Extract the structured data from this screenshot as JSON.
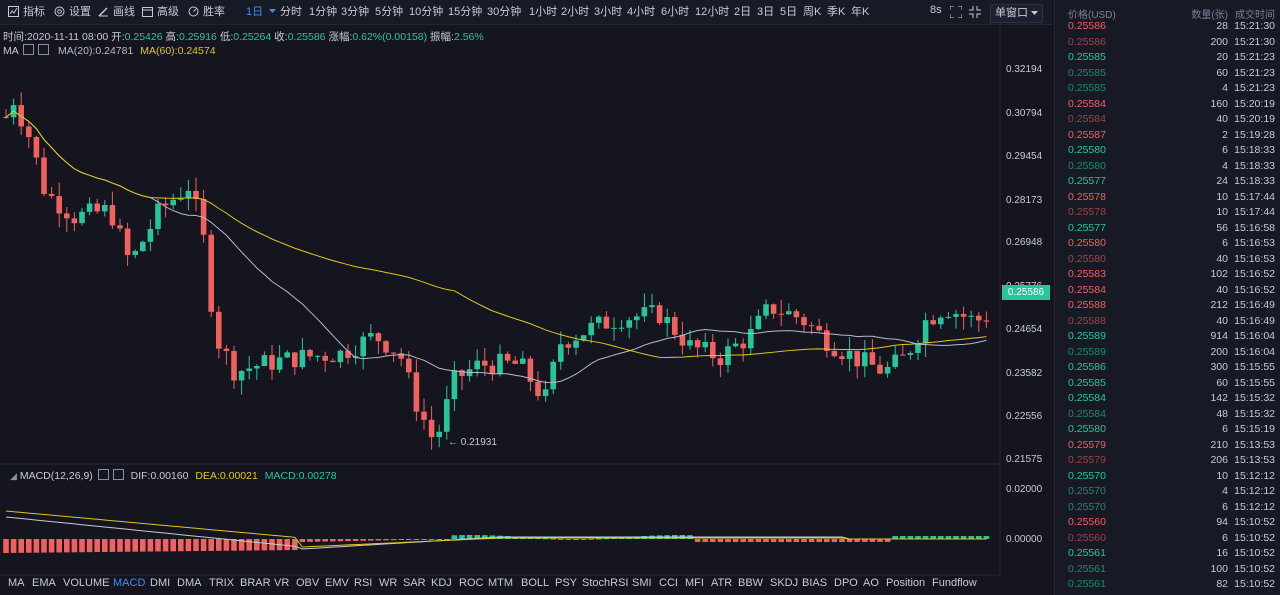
{
  "toolbar": {
    "tools": [
      {
        "label": "指标",
        "icon": "indicator-icon"
      },
      {
        "label": "设置",
        "icon": "gear-icon"
      },
      {
        "label": "画线",
        "icon": "pencil-icon"
      },
      {
        "label": "高级",
        "icon": "calendar-icon"
      },
      {
        "label": "胜率",
        "icon": "gauge-icon"
      }
    ],
    "active_timeframe": "1日",
    "timeframes": [
      "分时",
      "1分钟",
      "3分钟",
      "5分钟",
      "10分钟",
      "15分钟",
      "30分钟",
      "1小时",
      "2小时",
      "3小时",
      "4小时",
      "6小时",
      "12小时",
      "2日",
      "3日",
      "5日",
      "周K",
      "季K",
      "年K"
    ],
    "refresh": "8s",
    "window_mode": "单窗口"
  },
  "info": {
    "time_label": "时间:",
    "time": "2020-11-11 08:00",
    "open_label": "开:",
    "open": "0.25426",
    "high_label": "高:",
    "high": "0.25916",
    "low_label": "低:",
    "low": "0.25264",
    "close_label": "收:",
    "close": "0.25586",
    "change_label": "涨幅:",
    "change": "0.62%(0.00158)",
    "amplitude_label": "振幅:",
    "amplitude": "2.56%"
  },
  "ma": {
    "ma_label": "MA",
    "ma20": "MA(20):0.24781",
    "ma60": "MA(60):0.24574"
  },
  "macd": {
    "name": "MACD(12,26,9)",
    "dif": "DIF:0.00160",
    "dea": "DEA:0.00021",
    "macd": "MACD:0.00278"
  },
  "price_axis": {
    "ticks": [
      "0.32194",
      "0.30794",
      "0.29454",
      "0.28173",
      "0.26948",
      "0.25776",
      "0.24654",
      "0.23582",
      "0.22556",
      "0.21575"
    ],
    "current": "0.25586",
    "min_marker": "0.21931"
  },
  "macd_axis": {
    "ticks": [
      "0.02000",
      "0.00000"
    ]
  },
  "indicators": {
    "active": "MACD",
    "items": [
      "MA",
      "EMA",
      "VOLUME",
      "MACD",
      "DMI",
      "DMA",
      "TRIX",
      "BRAR",
      "VR",
      "OBV",
      "EMV",
      "RSI",
      "WR",
      "SAR",
      "KDJ",
      "ROC",
      "MTM",
      "BOLL",
      "PSY",
      "StochRSI",
      "SMI",
      "CCI",
      "MFI",
      "ATR",
      "BBW",
      "SKDJ",
      "BIAS",
      "DPO",
      "AO",
      "Position",
      "Fundflow"
    ]
  },
  "colors": {
    "up": "#26c69a",
    "down": "#f0615f",
    "ma20": "#b7bad0",
    "ma60": "#e3c61f",
    "accent": "#3e8cf4",
    "down_dim": "#9c4447",
    "up_dim": "#1c8a6c"
  },
  "trades": {
    "headers": {
      "price": "价格(USD)",
      "qty": "数量(张)",
      "time": "成交时间"
    },
    "rows": [
      {
        "price": "0.25586",
        "qty": "28",
        "time": "15:21:30",
        "side": "down"
      },
      {
        "price": "0.25586",
        "qty": "200",
        "time": "15:21:30",
        "side": "down-dim"
      },
      {
        "price": "0.25585",
        "qty": "20",
        "time": "15:21:23",
        "side": "up"
      },
      {
        "price": "0.25585",
        "qty": "60",
        "time": "15:21:23",
        "side": "up-dim"
      },
      {
        "price": "0.25585",
        "qty": "4",
        "time": "15:21:23",
        "side": "up-dim"
      },
      {
        "price": "0.25584",
        "qty": "160",
        "time": "15:20:19",
        "side": "down"
      },
      {
        "price": "0.25584",
        "qty": "40",
        "time": "15:20:19",
        "side": "down-dim"
      },
      {
        "price": "0.25587",
        "qty": "2",
        "time": "15:19:28",
        "side": "down"
      },
      {
        "price": "0.25580",
        "qty": "6",
        "time": "15:18:33",
        "side": "up"
      },
      {
        "price": "0.25580",
        "qty": "4",
        "time": "15:18:33",
        "side": "up-dim"
      },
      {
        "price": "0.25577",
        "qty": "24",
        "time": "15:18:33",
        "side": "up"
      },
      {
        "price": "0.25578",
        "qty": "10",
        "time": "15:17:44",
        "side": "down"
      },
      {
        "price": "0.25578",
        "qty": "10",
        "time": "15:17:44",
        "side": "down-dim"
      },
      {
        "price": "0.25577",
        "qty": "56",
        "time": "15:16:58",
        "side": "up"
      },
      {
        "price": "0.25580",
        "qty": "6",
        "time": "15:16:53",
        "side": "down"
      },
      {
        "price": "0.25580",
        "qty": "40",
        "time": "15:16:53",
        "side": "down-dim"
      },
      {
        "price": "0.25583",
        "qty": "102",
        "time": "15:16:52",
        "side": "down"
      },
      {
        "price": "0.25584",
        "qty": "40",
        "time": "15:16:52",
        "side": "down"
      },
      {
        "price": "0.25588",
        "qty": "212",
        "time": "15:16:49",
        "side": "down"
      },
      {
        "price": "0.25588",
        "qty": "40",
        "time": "15:16:49",
        "side": "down-dim"
      },
      {
        "price": "0.25589",
        "qty": "914",
        "time": "15:16:04",
        "side": "up"
      },
      {
        "price": "0.25589",
        "qty": "200",
        "time": "15:16:04",
        "side": "up-dim"
      },
      {
        "price": "0.25586",
        "qty": "300",
        "time": "15:15:55",
        "side": "up"
      },
      {
        "price": "0.25585",
        "qty": "60",
        "time": "15:15:55",
        "side": "up"
      },
      {
        "price": "0.25584",
        "qty": "142",
        "time": "15:15:32",
        "side": "up"
      },
      {
        "price": "0.25584",
        "qty": "48",
        "time": "15:15:32",
        "side": "up-dim"
      },
      {
        "price": "0.25580",
        "qty": "6",
        "time": "15:15:19",
        "side": "up"
      },
      {
        "price": "0.25579",
        "qty": "210",
        "time": "15:13:53",
        "side": "down"
      },
      {
        "price": "0.25579",
        "qty": "206",
        "time": "15:13:53",
        "side": "down-dim"
      },
      {
        "price": "0.25570",
        "qty": "10",
        "time": "15:12:12",
        "side": "up"
      },
      {
        "price": "0.25570",
        "qty": "4",
        "time": "15:12:12",
        "side": "up-dim"
      },
      {
        "price": "0.25570",
        "qty": "6",
        "time": "15:12:12",
        "side": "up-dim"
      },
      {
        "price": "0.25560",
        "qty": "94",
        "time": "15:10:52",
        "side": "down"
      },
      {
        "price": "0.25560",
        "qty": "6",
        "time": "15:10:52",
        "side": "down-dim"
      },
      {
        "price": "0.25561",
        "qty": "16",
        "time": "15:10:52",
        "side": "up"
      },
      {
        "price": "0.25561",
        "qty": "100",
        "time": "15:10:52",
        "side": "up-dim"
      },
      {
        "price": "0.25561",
        "qty": "82",
        "time": "15:10:52",
        "side": "up-dim"
      }
    ]
  }
}
